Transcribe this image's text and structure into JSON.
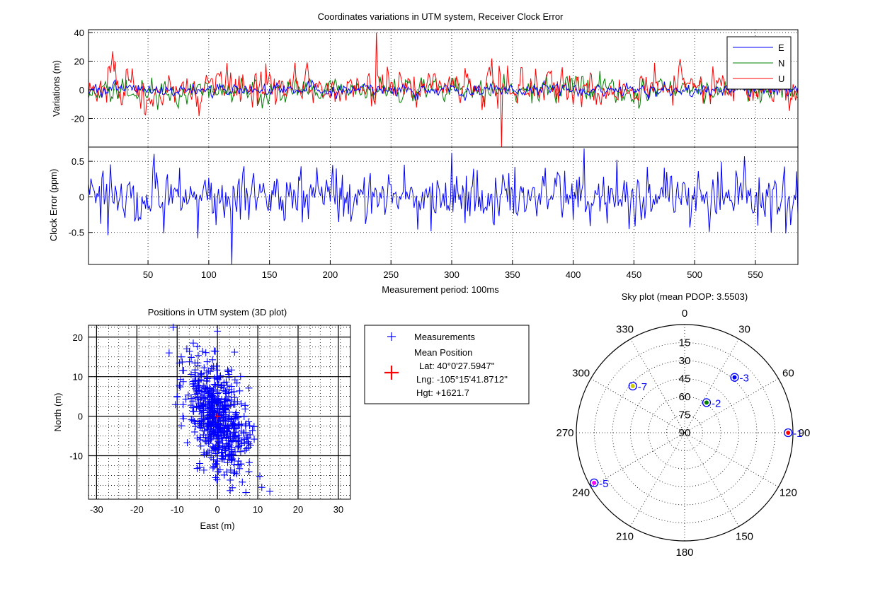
{
  "figure": {
    "title": "Coordinates variations in UTM system, Receiver Clock Error"
  },
  "chart_data": [
    {
      "id": "variations",
      "type": "line",
      "title": "",
      "xlabel": "",
      "ylabel": "Variations (m)",
      "xlim": [
        1,
        585
      ],
      "ylim": [
        -40,
        42
      ],
      "yticks": [
        -20,
        0,
        20,
        40
      ],
      "grid": true,
      "legend_placement": "top-right",
      "samples": 585,
      "series": [
        {
          "name": "E",
          "color": "#0000ff",
          "amplitude": 3,
          "mean": 0
        },
        {
          "name": "N",
          "color": "#008000",
          "amplitude": 6,
          "mean": 0
        },
        {
          "name": "U",
          "color": "#ff0000",
          "amplitude": 9,
          "mean": 2,
          "max": 40,
          "min": -40
        }
      ]
    },
    {
      "id": "clock",
      "type": "line",
      "title": "",
      "xlabel": "Measurement period: 100ms",
      "ylabel": "Clock Error (ppm)",
      "xlim": [
        1,
        585
      ],
      "ylim": [
        -0.95,
        0.7
      ],
      "xticks": [
        50,
        100,
        150,
        200,
        250,
        300,
        350,
        400,
        450,
        500,
        550
      ],
      "yticks": [
        -0.5,
        0,
        0.5
      ],
      "ytick_labels": [
        "-0.5",
        "0",
        "0.5"
      ],
      "grid": true,
      "series": [
        {
          "name": "",
          "color": "#0000ff",
          "amplitude": 0.22,
          "mean": 0,
          "min": -0.95,
          "max": 0.68
        }
      ]
    },
    {
      "id": "positions",
      "type": "scatter",
      "title": "Positions in UTM system (3D plot)",
      "xlabel": "East (m)",
      "ylabel": "North (m)",
      "xlim": [
        -32,
        33
      ],
      "ylim": [
        -21,
        23
      ],
      "xticks": [
        -30,
        -20,
        -10,
        0,
        10,
        20,
        30
      ],
      "yticks": [
        -10,
        0,
        10,
        20
      ],
      "grid": true,
      "marker": "+",
      "marker_color": "#0000ff",
      "point_count": 585,
      "spread": {
        "east_sd": 3.5,
        "north_sd": 7
      },
      "outliers": [
        [
          -11,
          22.5
        ],
        [
          0,
          21.5
        ],
        [
          -12,
          16
        ],
        [
          -6,
          18.5
        ],
        [
          13,
          -19
        ],
        [
          11,
          -18
        ],
        [
          -9,
          15
        ]
      ],
      "mean": {
        "east": 0,
        "north": 0
      }
    },
    {
      "id": "skyplot",
      "type": "scatter",
      "title": "Sky plot (mean PDOP: 3.5503)",
      "azimuth_labels": [
        "0",
        "30",
        "60",
        "90",
        "120",
        "150",
        "180",
        "210",
        "240",
        "270",
        "300",
        "330"
      ],
      "elevation_labels": [
        "15",
        "30",
        "45",
        "60",
        "75",
        "90"
      ],
      "satellites": [
        {
          "prn": "1",
          "azimuth": 90,
          "elevation": 4,
          "fill": "#ff0000"
        },
        {
          "prn": "2",
          "azimuth": 36,
          "elevation": 59,
          "fill": "#008000"
        },
        {
          "prn": "3",
          "azimuth": 42,
          "elevation": 28,
          "fill": "#0000ff"
        },
        {
          "prn": "5",
          "azimuth": 241,
          "elevation": 4,
          "fill": "#ff00ff"
        },
        {
          "prn": "7",
          "azimuth": 312,
          "elevation": 32,
          "fill": "#cccc00"
        }
      ]
    }
  ],
  "legend_positions": {
    "measurements_label": "Measurements",
    "mean_label": "Mean Position",
    "lat": "Lat: 40°0'27.5947''",
    "lng": "Lng: -105°15'41.8712''",
    "hgt": "Hgt: +1621.7"
  }
}
